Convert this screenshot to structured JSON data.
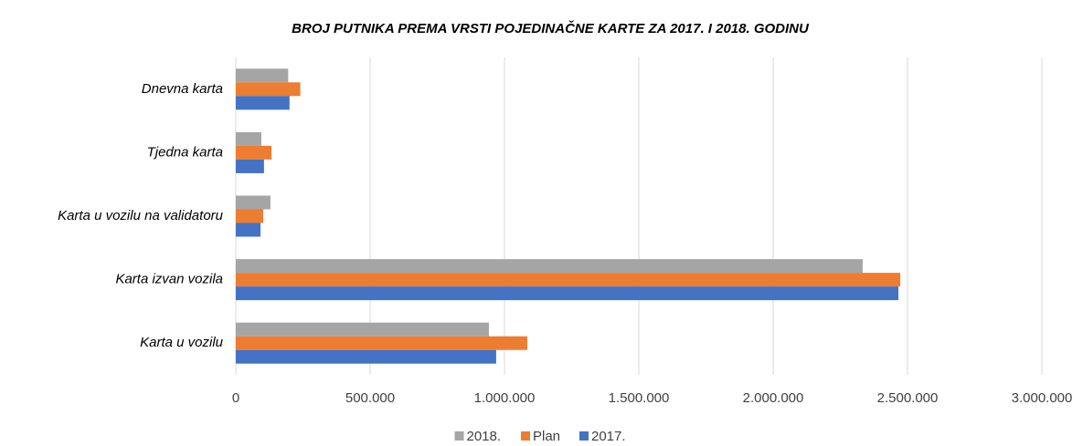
{
  "chart_data": {
    "type": "bar",
    "orientation": "horizontal",
    "title": "BROJ PUTNIKA PREMA VRSTI POJEDINAČNE KARTE ZA 2017. I 2018. GODINU",
    "categories": [
      "Dnevna karta",
      "Tjedna karta",
      "Karta u vozilu na validatoru",
      "Karta izvan vozila",
      "Karta u vozilu"
    ],
    "series": [
      {
        "name": "2018.",
        "color": "#a5a5a5",
        "values": [
          195000,
          95000,
          129000,
          2333000,
          942000
        ]
      },
      {
        "name": "Plan",
        "color": "#ed7d31",
        "values": [
          240000,
          133000,
          102000,
          2473000,
          1085000
        ]
      },
      {
        "name": "2017.",
        "color": "#4472c4",
        "values": [
          200000,
          105000,
          92000,
          2466000,
          969000
        ]
      }
    ],
    "xlim": [
      0,
      3000000
    ],
    "xticks": [
      0,
      {
        "value": 500000,
        "label": "500.000"
      },
      {
        "value": 1000000,
        "label": "1.000.000"
      },
      {
        "value": 1500000,
        "label": "1.500.000"
      },
      {
        "value": 2000000,
        "label": "2.000.000"
      },
      {
        "value": 2500000,
        "label": "2.500.000"
      },
      {
        "value": 3000000,
        "label": "3.000.000"
      }
    ],
    "grid": true,
    "legend": "bottom"
  }
}
